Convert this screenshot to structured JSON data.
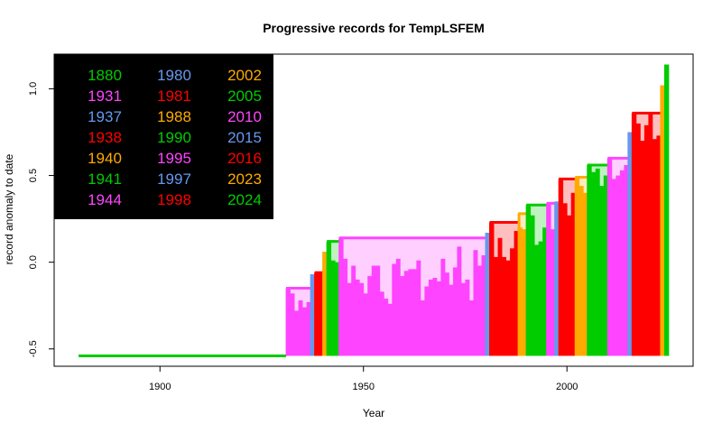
{
  "chart_data": {
    "type": "bar",
    "title": "Progressive records for TempLSFEM",
    "xlabel": "Year",
    "ylabel": "record anomaly to date",
    "xlim": [
      1874,
      2031
    ],
    "ylim": [
      -0.6,
      1.2
    ],
    "x_ticks": [
      1900,
      1950,
      2000
    ],
    "y_ticks": [
      -0.5,
      0.0,
      0.5,
      1.0
    ],
    "y_tick_labels": [
      "-0.5",
      "0.0",
      "0.5",
      "1.0"
    ],
    "baseline": -0.54,
    "legend_position": "top-left",
    "legend_background": "#000000",
    "records": [
      {
        "year": 1880,
        "value": -0.54,
        "color": "#00cc00"
      },
      {
        "year": 1931,
        "value": -0.15,
        "color": "#ff44ff"
      },
      {
        "year": 1937,
        "value": -0.07,
        "color": "#6699ee"
      },
      {
        "year": 1938,
        "value": -0.06,
        "color": "#ff0000"
      },
      {
        "year": 1940,
        "value": 0.06,
        "color": "#ffaa00"
      },
      {
        "year": 1941,
        "value": 0.12,
        "color": "#00cc00"
      },
      {
        "year": 1944,
        "value": 0.14,
        "color": "#ff44ff"
      },
      {
        "year": 1980,
        "value": 0.17,
        "color": "#6699ee"
      },
      {
        "year": 1981,
        "value": 0.23,
        "color": "#ff0000"
      },
      {
        "year": 1988,
        "value": 0.28,
        "color": "#ffaa00"
      },
      {
        "year": 1990,
        "value": 0.33,
        "color": "#00cc00"
      },
      {
        "year": 1995,
        "value": 0.34,
        "color": "#ff44ff"
      },
      {
        "year": 1997,
        "value": 0.35,
        "color": "#6699ee"
      },
      {
        "year": 1998,
        "value": 0.48,
        "color": "#ff0000"
      },
      {
        "year": 2002,
        "value": 0.49,
        "color": "#ffaa00"
      },
      {
        "year": 2005,
        "value": 0.56,
        "color": "#00cc00"
      },
      {
        "year": 2010,
        "value": 0.6,
        "color": "#ff44ff"
      },
      {
        "year": 2015,
        "value": 0.75,
        "color": "#6699ee"
      },
      {
        "year": 2016,
        "value": 0.86,
        "color": "#ff0000"
      },
      {
        "year": 2023,
        "value": 1.02,
        "color": "#ffaa00"
      },
      {
        "year": 2024,
        "value": 1.14,
        "color": "#00cc00"
      }
    ],
    "annual": {
      "start_year": 1900,
      "values": [
        -0.16,
        -0.22,
        -0.33,
        -0.42,
        -0.47,
        -0.36,
        -0.29,
        -0.45,
        -0.49,
        -0.52,
        -0.5,
        -0.54,
        -0.51,
        -0.51,
        -0.4,
        -0.39,
        -0.4,
        -0.52,
        -0.4,
        -0.36,
        -0.34,
        -0.31,
        -0.35,
        -0.37,
        -0.29,
        -0.28,
        -0.26,
        -0.28,
        -0.34,
        -0.23,
        -0.24,
        -0.15,
        -0.18,
        -0.28,
        -0.22,
        -0.26,
        -0.23,
        -0.07,
        -0.06,
        -0.06,
        0.06,
        0.12,
        0.01,
        0.0,
        0.14,
        0.02,
        -0.12,
        -0.02,
        -0.1,
        -0.12,
        -0.18,
        -0.08,
        -0.02,
        -0.02,
        -0.17,
        -0.21,
        -0.24,
        -0.01,
        0.02,
        -0.08,
        -0.05,
        -0.04,
        -0.04,
        0.01,
        -0.22,
        -0.14,
        -0.1,
        -0.09,
        -0.11,
        0.02,
        -0.06,
        -0.13,
        -0.03,
        0.09,
        -0.12,
        -0.1,
        -0.22,
        0.07,
        -0.02,
        0.04,
        0.17,
        0.23,
        0.03,
        0.14,
        0.03,
        0.01,
        0.08,
        0.18,
        0.2,
        0.19,
        0.33,
        0.27,
        0.1,
        0.12,
        0.2,
        0.34,
        0.19,
        0.35,
        0.48,
        0.34,
        0.27,
        0.4,
        0.49,
        0.44,
        0.4,
        0.56,
        0.52,
        0.54,
        0.44,
        0.5,
        0.6,
        0.48,
        0.5,
        0.53,
        0.56,
        0.75,
        0.86,
        0.8,
        0.7,
        0.79,
        0.86,
        0.71,
        0.73,
        1.02,
        1.14
      ]
    }
  }
}
